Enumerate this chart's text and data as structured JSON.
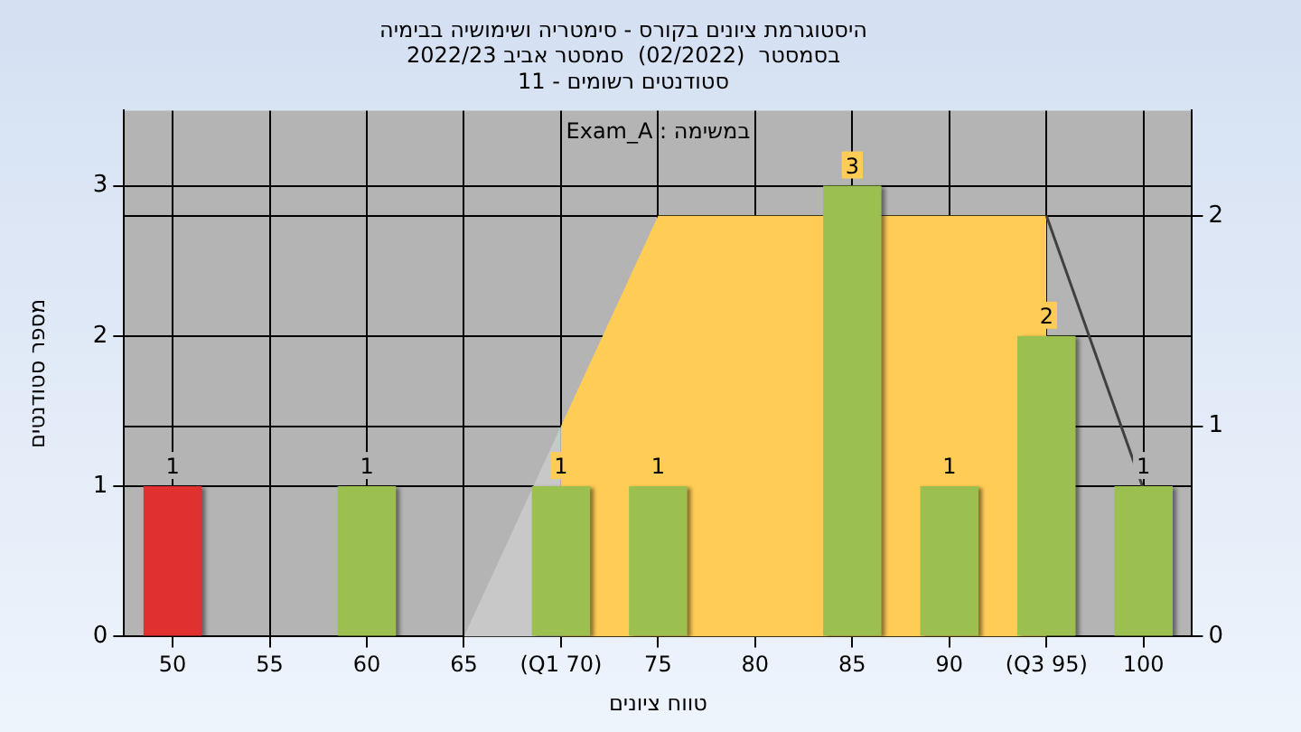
{
  "chart_data": {
    "type": "bar",
    "title": "היסטוגרמת ציונים בקורס - סימטריה ושימושיה בבימיה",
    "subtitle": "בסמסטר  (02/2022)  סמסטר אביב 2022/23\nסטודנטים רשומים - 11",
    "xlabel": "טווח ציונים",
    "ylabel": "מספר סטודנטים",
    "annotations": [
      "Exam_A : במשימה"
    ],
    "categories": [
      "50",
      "55",
      "60",
      "65",
      "(Q1 70)",
      "75",
      "80",
      "85",
      "90",
      "(Q3 95)",
      "100"
    ],
    "series": [
      {
        "type": "area",
        "axis": "y2",
        "color": "#c8c8c8",
        "values": [
          null,
          null,
          null,
          0,
          1,
          null,
          null,
          null,
          null,
          null,
          null
        ]
      },
      {
        "type": "area",
        "axis": "y2",
        "color": "#ffcc55",
        "values": [
          null,
          null,
          null,
          null,
          1,
          2,
          2,
          null,
          2,
          2,
          null
        ]
      },
      {
        "type": "line",
        "axis": "y2",
        "color": "#404040",
        "values": [
          null,
          null,
          null,
          null,
          null,
          null,
          null,
          null,
          null,
          2,
          0.7
        ]
      },
      {
        "color": "#9cc050",
        "value_labels": [
          "1",
          null,
          "1",
          null,
          "1",
          "1",
          null,
          "3",
          "1",
          "2",
          "1"
        ],
        "colors": [
          "#e03030",
          null,
          "#9cc050",
          null,
          "#9cc050",
          "#9cc050",
          null,
          "#9cc050",
          "#9cc050",
          "#9cc050",
          "#9cc050"
        ],
        "values": [
          1,
          null,
          1,
          null,
          1,
          1,
          null,
          3,
          1,
          2,
          1
        ]
      }
    ],
    "ylim": [
      0,
      3.5
    ],
    "yticks": [
      0,
      1,
      2,
      3
    ],
    "y2lim": [
      0,
      2.5
    ],
    "y2ticks": [
      0,
      1,
      2
    ],
    "grid": true,
    "legend": false
  }
}
